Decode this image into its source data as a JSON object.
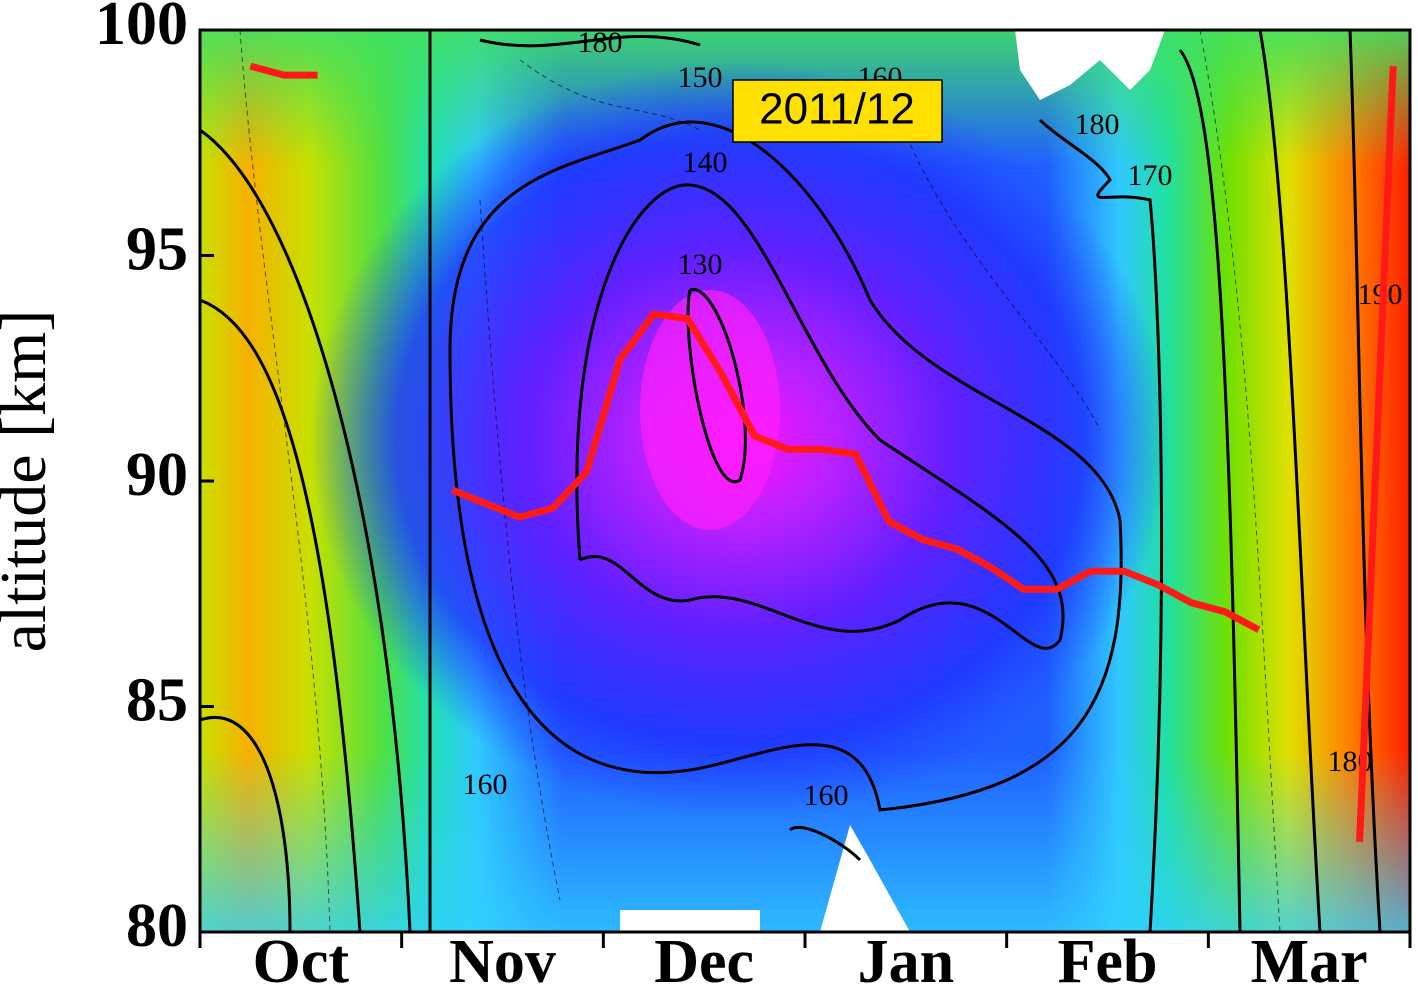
{
  "chart_data": {
    "type": "line",
    "ylabel": "altitude [km]",
    "annotation": "2011/12",
    "contour_labels": [
      "180",
      "150",
      "160",
      "140",
      "180",
      "170",
      "130",
      "190",
      "160",
      "160",
      "180"
    ],
    "categories": [
      null,
      null,
      "Oct",
      null,
      null,
      null,
      null,
      null,
      "Nov",
      null,
      null,
      null,
      null,
      null,
      "Dec",
      null,
      null,
      null,
      null,
      null,
      "Jan",
      null,
      null,
      null,
      null,
      null,
      "Feb",
      null,
      null,
      null,
      null,
      null,
      "Mar",
      null,
      null,
      null
    ],
    "values": [
      null,
      99.2,
      99.0,
      99.0,
      null,
      null,
      null,
      89.8,
      89.5,
      89.2,
      89.4,
      90.2,
      92.7,
      93.7,
      93.6,
      92.4,
      91.0,
      90.7,
      90.7,
      90.6,
      89.1,
      88.7,
      88.5,
      88.1,
      87.6,
      87.6,
      88.0,
      88.0,
      87.7,
      87.3,
      87.1,
      86.7,
      null,
      null,
      82.0,
      99.2
    ],
    "color": "#ff1a1a",
    "ylim": [
      80,
      100
    ],
    "yticks": [
      80,
      85,
      90,
      95,
      100
    ],
    "grid": false
  }
}
